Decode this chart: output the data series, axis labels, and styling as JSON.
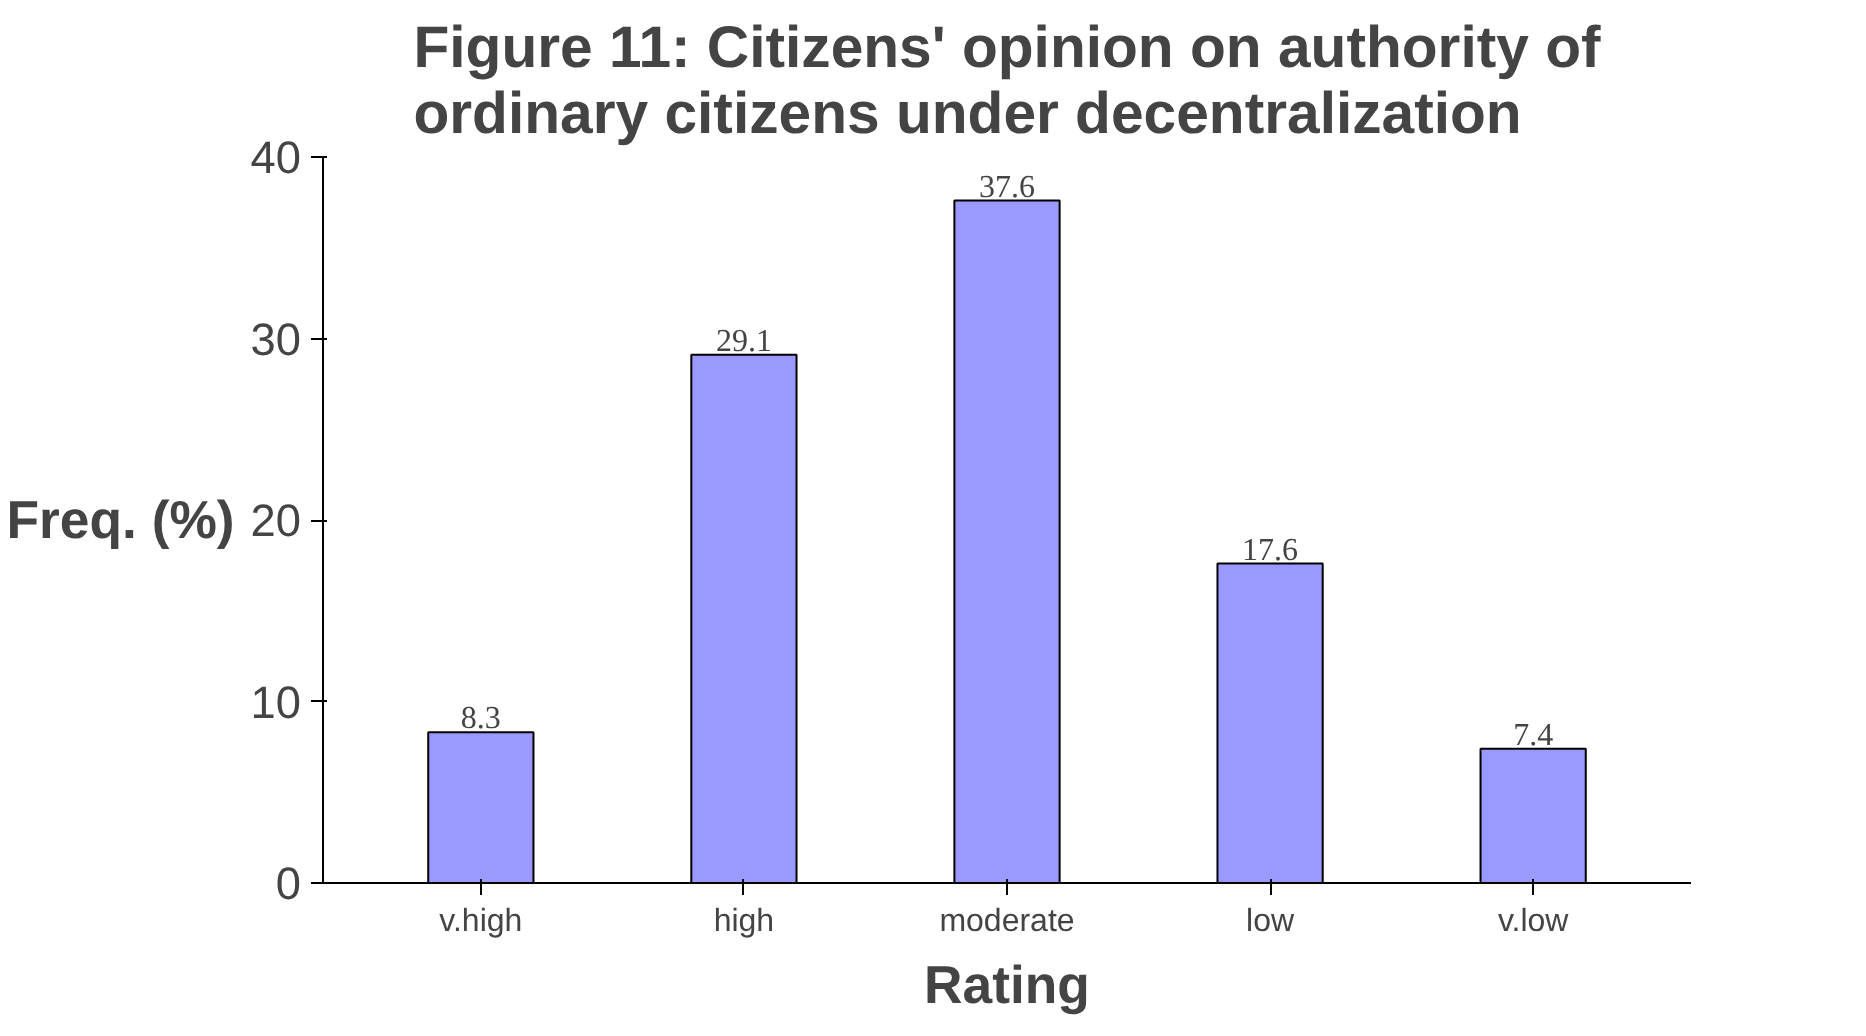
{
  "chart_data": {
    "type": "bar",
    "title": "Figure 11: Citizens' opinion on authority of ordinary citizens under decentralization",
    "xlabel": "Rating",
    "ylabel": "Freq. (%)",
    "categories": [
      "v.high",
      "high",
      "moderate",
      "low",
      "v.low"
    ],
    "values": [
      8.3,
      29.1,
      37.6,
      17.6,
      7.4
    ],
    "color": "#9999ff",
    "ylim": [
      0,
      40
    ],
    "yticks": [
      0,
      10,
      20,
      30,
      40
    ],
    "grid": false,
    "data_labels": true
  }
}
